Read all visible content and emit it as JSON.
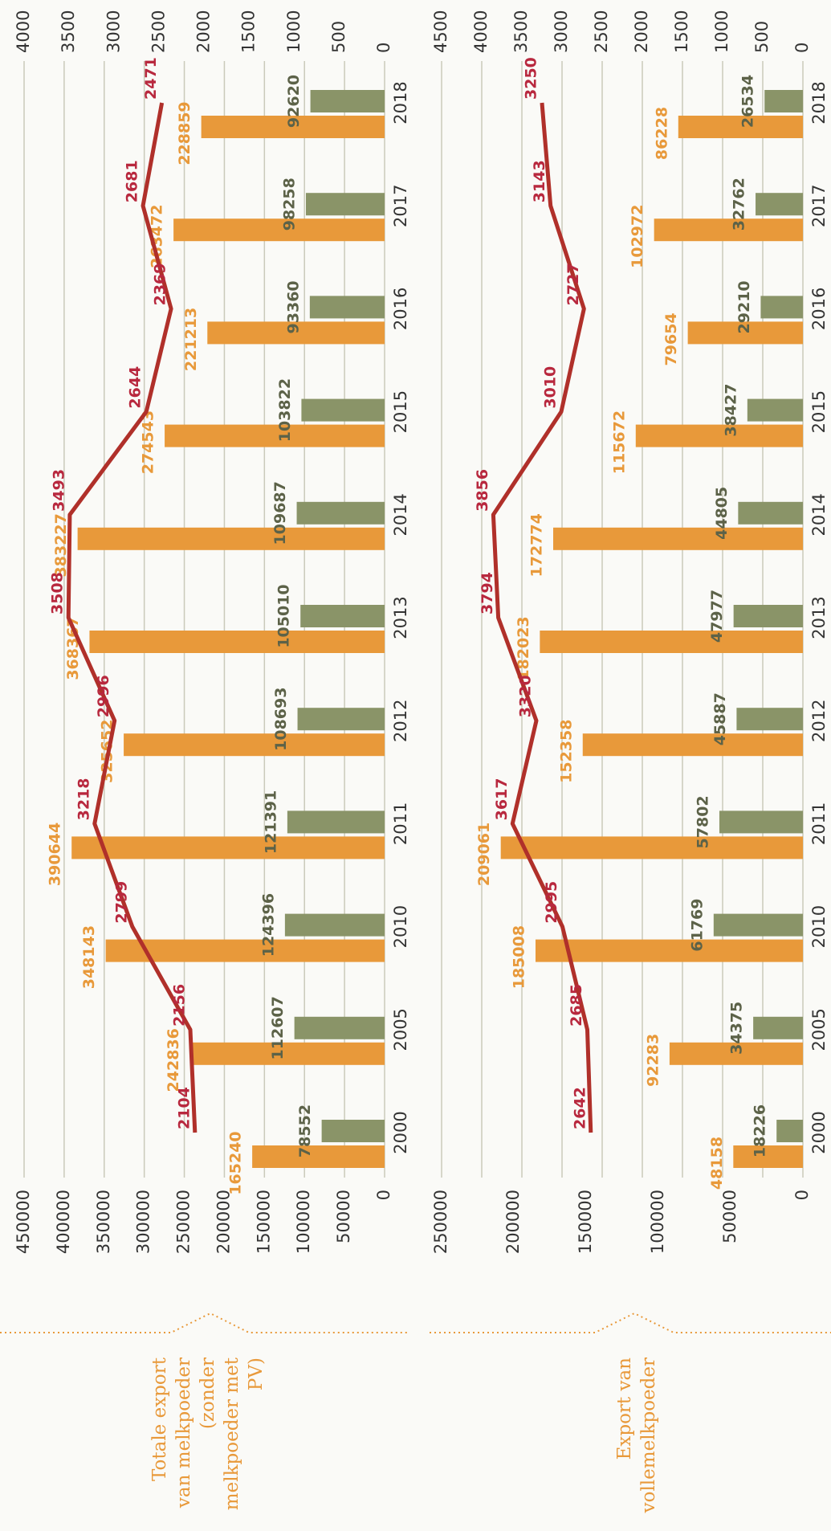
{
  "chart_data": [
    {
      "type": "bar",
      "title": [
        "Totale export",
        "van melkpoeder",
        "(zonder",
        "melkpoeder met",
        "PV)"
      ],
      "categories": [
        "2000",
        "2005",
        "2010",
        "2011",
        "2012",
        "2013",
        "2014",
        "2015",
        "2016",
        "2017",
        "2018"
      ],
      "series": [
        {
          "color": "#E8993A",
          "label_color": "#E8993A",
          "values": [
            165240,
            242836,
            348143,
            390644,
            325652,
            368367,
            383227,
            274543,
            221213,
            263472,
            228859
          ]
        },
        {
          "color": "#8A9468",
          "label_color": "#5C6248",
          "values": [
            78552,
            112607,
            124396,
            121391,
            108693,
            105010,
            109687,
            103822,
            93360,
            98258,
            92620
          ]
        },
        {
          "type": "line",
          "axis": "y2",
          "color": "#B0302A",
          "label_color": "#B8283E",
          "values": [
            2104,
            2156,
            2799,
            3218,
            2996,
            3508,
            3493,
            2644,
            2369,
            2681,
            2471
          ]
        }
      ],
      "ylim": [
        0,
        450000
      ],
      "yticks": [
        0,
        50000,
        100000,
        150000,
        200000,
        250000,
        300000,
        350000,
        400000,
        450000
      ],
      "y2lim": [
        0,
        4000
      ],
      "y2ticks": [
        0,
        500,
        1000,
        1500,
        2000,
        2500,
        3000,
        3500,
        4000
      ],
      "grid": "y"
    },
    {
      "type": "bar",
      "title": [
        "Export van",
        "vollemelkpoeder"
      ],
      "categories": [
        "2000",
        "2005",
        "2010",
        "2011",
        "2012",
        "2013",
        "2014",
        "2015",
        "2016",
        "2017",
        "2018"
      ],
      "series": [
        {
          "color": "#E8993A",
          "label_color": "#E8993A",
          "values": [
            48158,
            92283,
            185008,
            209061,
            152358,
            182023,
            172774,
            115672,
            79654,
            102972,
            86228
          ]
        },
        {
          "color": "#8A9468",
          "label_color": "#5C6248",
          "values": [
            18226,
            34375,
            61769,
            57802,
            45887,
            47977,
            44805,
            38427,
            29210,
            32762,
            26534
          ]
        },
        {
          "type": "line",
          "axis": "y2",
          "color": "#B0302A",
          "label_color": "#B8283E",
          "values": [
            2642,
            2685,
            2995,
            3617,
            3320,
            3794,
            3856,
            3010,
            2727,
            3143,
            3250
          ]
        }
      ],
      "ylim": [
        0,
        250000
      ],
      "yticks": [
        0,
        50000,
        100000,
        150000,
        200000,
        250000
      ],
      "y2lim": [
        0,
        4500
      ],
      "y2ticks": [
        0,
        500,
        1000,
        1500,
        2000,
        2500,
        3000,
        3500,
        4000,
        4500
      ],
      "grid": "y2"
    }
  ]
}
